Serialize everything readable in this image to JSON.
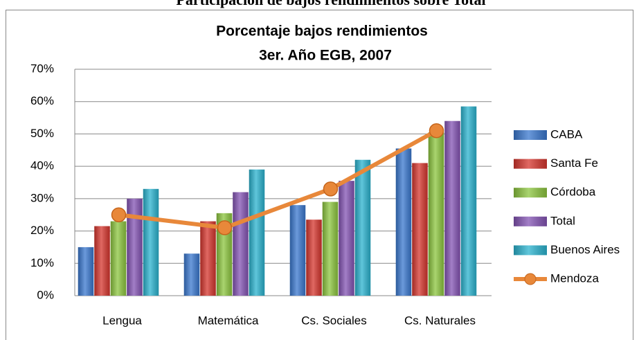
{
  "page_heading": "Participación de bajos rendimientos sobre Total",
  "chart_data": {
    "type": "bar",
    "title": "Porcentaje bajos rendimientos",
    "subtitle": "3er. Año EGB, 2007",
    "categories": [
      "Lengua",
      "Matemática",
      "Cs. Sociales",
      "Cs. Naturales"
    ],
    "series": [
      {
        "name": "CABA",
        "color": "#3a78cf",
        "values": [
          15,
          13,
          28,
          45.5
        ]
      },
      {
        "name": "Santa Fe",
        "color": "#d6362e",
        "values": [
          21.5,
          23,
          23.5,
          41
        ]
      },
      {
        "name": "Córdoba",
        "color": "#8dc63f",
        "values": [
          23,
          25.5,
          29,
          50.5
        ]
      },
      {
        "name": "Total",
        "color": "#8454b4",
        "values": [
          30,
          32,
          35.5,
          54
        ]
      },
      {
        "name": "Buenos Aires",
        "color": "#2bb3cf",
        "values": [
          33,
          39,
          42,
          58.5
        ]
      },
      {
        "name": "Mendoza",
        "color": "#e8883a",
        "type": "line",
        "values": [
          25,
          21,
          33,
          51
        ]
      }
    ],
    "ylim": [
      0,
      70
    ],
    "yticks": [
      {
        "value": 0,
        "label": "0%"
      },
      {
        "value": 10,
        "label": "10%"
      },
      {
        "value": 20,
        "label": "20%"
      },
      {
        "value": 30,
        "label": "30%"
      },
      {
        "value": 40,
        "label": "40%"
      },
      {
        "value": 50,
        "label": "50%"
      },
      {
        "value": 60,
        "label": "60%"
      },
      {
        "value": 70,
        "label": "70%"
      }
    ],
    "grid": true,
    "legend": "right"
  }
}
